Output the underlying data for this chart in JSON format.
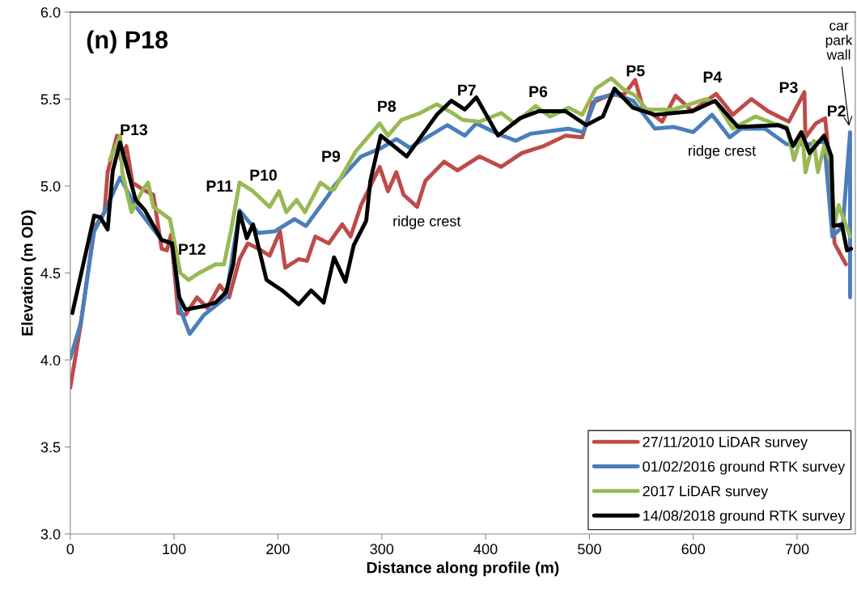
{
  "chart_data": {
    "type": "line",
    "title": "(n) P18",
    "xlabel": "Distance along profile (m)",
    "ylabel": "Elevation (m OD)",
    "xlim": [
      0,
      756
    ],
    "xticks": [
      0,
      100,
      200,
      300,
      400,
      500,
      600,
      700
    ],
    "ylim": [
      3.0,
      6.0
    ],
    "yticks": [
      {
        "value": 3.0,
        "label": "3.0"
      },
      {
        "value": 3.5,
        "label": "3.5"
      },
      {
        "value": 4.0,
        "label": "4.0"
      },
      {
        "value": 4.5,
        "label": "4.5"
      },
      {
        "value": 5.0,
        "label": "5.0"
      },
      {
        "value": 5.5,
        "label": "5.5"
      },
      {
        "value": 6.0,
        "label": "6.0"
      }
    ],
    "grid": false,
    "legend": "bottom right",
    "marker": "none",
    "line_style": "solid",
    "series": [
      {
        "name": "27/11/2010 LiDAR survey",
        "color": "#be4b48",
        "x": [
          0,
          10,
          23,
          33,
          36,
          45,
          49,
          54,
          60,
          70,
          80,
          88,
          93,
          97,
          104,
          111,
          122,
          132,
          144,
          153,
          163,
          171,
          181,
          192,
          202,
          207,
          220,
          228,
          236,
          249,
          262,
          270,
          280,
          298,
          306,
          314,
          321,
          334,
          342,
          360,
          373,
          394,
          415,
          435,
          456,
          477,
          493,
          503,
          518,
          534,
          544,
          551,
          570,
          583,
          599,
          622,
          638,
          656,
          672,
          692,
          707,
          708,
          718,
          727,
          732,
          736,
          747
        ],
        "values": [
          3.84,
          4.2,
          4.76,
          4.85,
          5.08,
          5.29,
          5.15,
          5.23,
          5.02,
          4.98,
          4.95,
          4.64,
          4.63,
          4.72,
          4.27,
          4.26,
          4.36,
          4.3,
          4.43,
          4.36,
          4.58,
          4.67,
          4.64,
          4.6,
          4.74,
          4.53,
          4.58,
          4.57,
          4.71,
          4.67,
          4.78,
          4.71,
          4.89,
          5.11,
          4.97,
          5.08,
          4.95,
          4.88,
          5.03,
          5.14,
          5.09,
          5.17,
          5.11,
          5.19,
          5.23,
          5.29,
          5.28,
          5.48,
          5.52,
          5.53,
          5.61,
          5.46,
          5.37,
          5.52,
          5.43,
          5.53,
          5.41,
          5.5,
          5.43,
          5.37,
          5.54,
          5.28,
          5.36,
          5.39,
          5.08,
          4.67,
          4.55
        ]
      },
      {
        "name": "01/02/2016 ground RTK survey",
        "color": "#4a7ebb",
        "x": [
          0,
          10,
          23,
          33,
          48,
          62,
          88,
          98,
          106,
          115,
          129,
          150,
          163,
          181,
          197,
          216,
          227,
          249,
          254,
          280,
          300,
          314,
          327,
          363,
          380,
          391,
          412,
          429,
          443,
          480,
          494,
          506,
          524,
          542,
          563,
          581,
          600,
          618,
          635,
          646,
          669,
          690,
          711,
          726,
          734,
          744,
          751,
          751
        ],
        "values": [
          4.01,
          4.21,
          4.74,
          4.85,
          5.05,
          4.89,
          4.69,
          4.67,
          4.29,
          4.15,
          4.26,
          4.36,
          4.86,
          4.73,
          4.74,
          4.81,
          4.77,
          4.95,
          5.0,
          5.17,
          5.22,
          5.27,
          5.22,
          5.35,
          5.29,
          5.36,
          5.3,
          5.26,
          5.3,
          5.33,
          5.31,
          5.5,
          5.53,
          5.49,
          5.33,
          5.34,
          5.31,
          5.41,
          5.28,
          5.33,
          5.33,
          5.24,
          5.24,
          5.26,
          4.71,
          4.77,
          5.31,
          4.36
        ]
      },
      {
        "name": "2017 LiDAR survey",
        "color": "#98b954",
        "x": [
          38,
          41,
          48,
          50,
          59,
          70,
          75,
          80,
          96,
          106,
          114,
          124,
          140,
          148,
          155,
          163,
          176,
          192,
          201,
          208,
          218,
          226,
          241,
          250,
          254,
          275,
          298,
          306,
          319,
          337,
          353,
          368,
          378,
          394,
          415,
          428,
          448,
          462,
          480,
          493,
          506,
          521,
          532,
          544,
          555,
          581,
          612,
          622,
          638,
          660,
          677,
          690,
          697,
          705,
          708,
          716,
          720,
          726,
          732,
          736,
          740,
          751
        ],
        "values": [
          5.15,
          5.19,
          5.29,
          5.08,
          4.85,
          4.98,
          5.02,
          4.88,
          4.81,
          4.5,
          4.46,
          4.5,
          4.55,
          4.55,
          4.75,
          5.02,
          4.97,
          4.88,
          4.97,
          4.85,
          4.92,
          4.85,
          5.02,
          4.98,
          4.98,
          5.2,
          5.36,
          5.29,
          5.38,
          5.42,
          5.47,
          5.42,
          5.38,
          5.37,
          5.42,
          5.36,
          5.46,
          5.4,
          5.45,
          5.41,
          5.56,
          5.62,
          5.56,
          5.52,
          5.44,
          5.44,
          5.5,
          5.48,
          5.33,
          5.4,
          5.36,
          5.34,
          5.15,
          5.31,
          5.08,
          5.26,
          5.08,
          5.23,
          5.14,
          4.78,
          4.89,
          4.71
        ]
      },
      {
        "name": "14/08/2018 ground RTK survey",
        "color": "#000000",
        "x": [
          2,
          23,
          29,
          36,
          41,
          48,
          63,
          72,
          88,
          98,
          105,
          111,
          129,
          140,
          150,
          157,
          163,
          170,
          176,
          189,
          204,
          220,
          232,
          244,
          254,
          265,
          273,
          285,
          289,
          299,
          324,
          353,
          367,
          380,
          391,
          412,
          433,
          451,
          477,
          497,
          513,
          524,
          542,
          563,
          599,
          621,
          643,
          682,
          690,
          696,
          704,
          712,
          726,
          733,
          735,
          743,
          748,
          752
        ],
        "values": [
          4.27,
          4.83,
          4.82,
          4.75,
          5.09,
          5.25,
          4.92,
          4.86,
          4.69,
          4.67,
          4.36,
          4.29,
          4.31,
          4.33,
          4.39,
          4.55,
          4.85,
          4.7,
          4.78,
          4.46,
          4.4,
          4.32,
          4.4,
          4.33,
          4.59,
          4.45,
          4.66,
          4.8,
          5.03,
          5.29,
          5.17,
          5.41,
          5.49,
          5.44,
          5.51,
          5.29,
          5.39,
          5.43,
          5.43,
          5.35,
          5.4,
          5.56,
          5.45,
          5.41,
          5.43,
          5.49,
          5.34,
          5.35,
          5.33,
          5.23,
          5.31,
          5.19,
          5.29,
          5.17,
          4.77,
          4.78,
          4.63,
          4.64
        ]
      }
    ],
    "annotations": [
      "P13",
      "P12",
      "P11",
      "P10",
      "P9",
      "P8",
      "P7",
      "P6",
      "P5",
      "P4",
      "P3",
      "P2",
      "ridge crest",
      "ridge crest",
      "car\npark\nwall"
    ]
  }
}
